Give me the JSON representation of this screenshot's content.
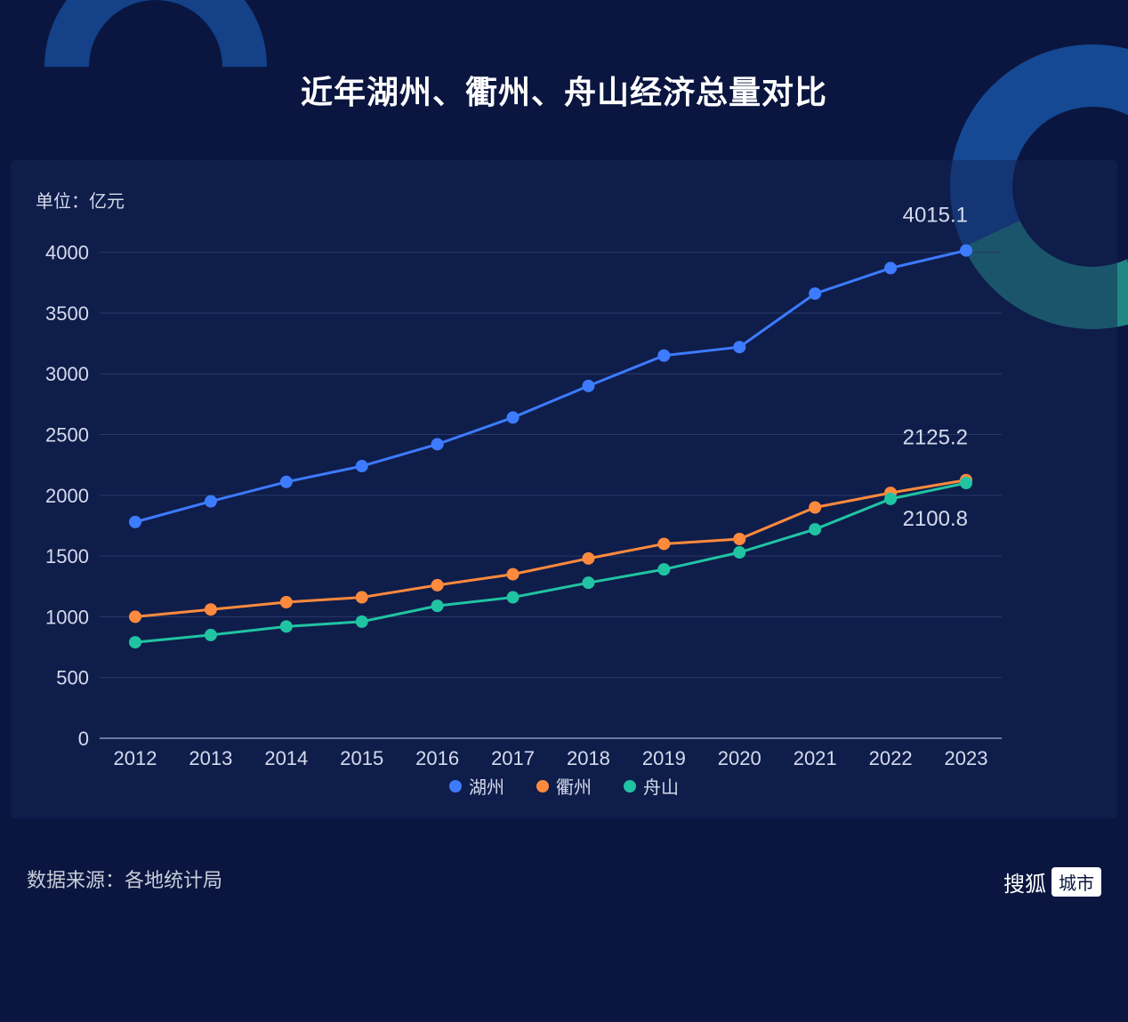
{
  "title": "近年湖州、衢州、舟山经济总量对比",
  "unit_label": "单位：亿元",
  "source": "数据来源：各地统计局",
  "logo": {
    "brand": "搜狐",
    "suffix": "城市"
  },
  "chart": {
    "type": "line",
    "background_color": "#0a1640",
    "card_color": "rgba(20,35,85,0.5)",
    "grid_color": "#2a3968",
    "axis_color": "#8a98c0",
    "text_color": "#d5dbec",
    "ylim": [
      0,
      4100
    ],
    "yticks": [
      0,
      500,
      1000,
      1500,
      2000,
      2500,
      3000,
      3500,
      4000
    ],
    "categories": [
      "2012",
      "2013",
      "2014",
      "2015",
      "2016",
      "2017",
      "2018",
      "2019",
      "2020",
      "2021",
      "2022",
      "2023"
    ],
    "marker_radius": 7,
    "line_width": 3,
    "title_fontsize": 36,
    "tick_fontsize": 22,
    "legend_fontsize": 20,
    "series": [
      {
        "name": "湖州",
        "color": "#3d7bff",
        "values": [
          1780,
          1950,
          2110,
          2240,
          2420,
          2640,
          2900,
          3150,
          3220,
          3660,
          3870,
          4015.1
        ],
        "end_label": "4015.1"
      },
      {
        "name": "衢州",
        "color": "#ff8a3d",
        "values": [
          1000,
          1060,
          1120,
          1160,
          1260,
          1350,
          1480,
          1600,
          1640,
          1900,
          2020,
          2125.2
        ],
        "end_label": "2125.2"
      },
      {
        "name": "舟山",
        "color": "#20c4a2",
        "values": [
          790,
          850,
          920,
          960,
          1090,
          1160,
          1280,
          1390,
          1530,
          1720,
          1970,
          2100.8
        ],
        "end_label": "2100.8"
      }
    ],
    "end_label_offsets": {
      "湖州": -32,
      "衢州": -40,
      "舟山": 48
    }
  }
}
